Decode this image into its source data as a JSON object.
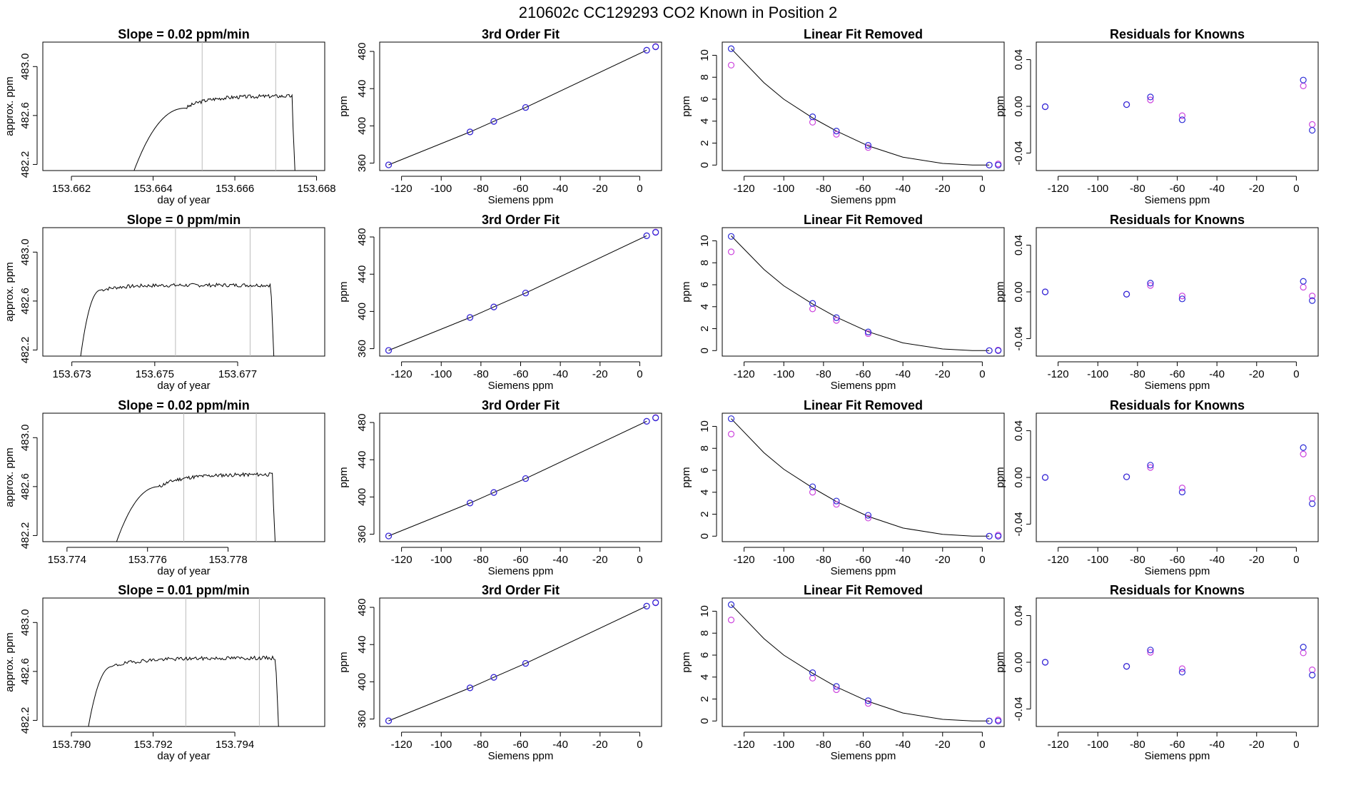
{
  "figure_title": "210602c     CC129293   CO2 Known in Position  2",
  "colors": {
    "blue": "#2b2bd6",
    "magenta": "#cc44dd",
    "marker": "#bbbbbb",
    "line": "#000000"
  },
  "chart_data": [
    {
      "row": 1,
      "panel": "timeseries",
      "type": "line",
      "title": "Slope =  0.02  ppm/min",
      "xlabel": "day of year",
      "ylabel": "approx. ppm",
      "xlim": [
        153.6613,
        153.6682
      ],
      "ylim": [
        482.15,
        483.2
      ],
      "xticks": [
        153.662,
        153.664,
        153.666,
        153.668
      ],
      "xtick_labels": [
        "153.662",
        "153.664",
        "153.666",
        "153.668"
      ],
      "yticks": [
        482.2,
        482.6,
        483.0
      ],
      "ytick_labels": [
        "482.2",
        "482.6",
        "483.0"
      ],
      "markers": [
        153.6652,
        153.667
      ],
      "start": 153.6635,
      "ramp_end": 153.6648,
      "end": 153.6674,
      "drop_end": 153.6675,
      "base": 482.12,
      "plateau": 482.7,
      "rise_slope": 0.5,
      "noise_seed": 3
    },
    {
      "row": 1,
      "panel": "fit",
      "type": "scatter+line",
      "title": "3rd Order Fit",
      "xlabel": "Siemens ppm",
      "ylabel": "ppm",
      "xlim": [
        -131,
        11
      ],
      "ylim": [
        352,
        490
      ],
      "xticks": [
        -120,
        -100,
        -80,
        -60,
        -40,
        -20,
        0
      ],
      "yticks": [
        360,
        400,
        440,
        480
      ],
      "x": [
        -126.5,
        -85.5,
        -73.5,
        -57.5,
        3.5,
        8.0
      ],
      "blue": [
        358.1,
        393.5,
        404.8,
        419.8,
        481.3,
        484.9
      ],
      "magenta": [
        358.1,
        393.5,
        404.8,
        419.8,
        481.3,
        485.3
      ]
    },
    {
      "row": 1,
      "panel": "linear_removed",
      "type": "scatter+line",
      "title": "Linear Fit Removed",
      "xlabel": "Siemens ppm",
      "ylabel": "ppm",
      "xlim": [
        -131,
        11
      ],
      "ylim": [
        -0.5,
        11.2
      ],
      "xticks": [
        -120,
        -100,
        -80,
        -60,
        -40,
        -20,
        0
      ],
      "yticks": [
        0,
        2,
        4,
        6,
        8,
        10
      ],
      "x": [
        -126.5,
        -85.5,
        -73.5,
        -57.5,
        3.5,
        8.0
      ],
      "blue": [
        10.6,
        4.4,
        3.1,
        1.8,
        0.0,
        0.0
      ],
      "magenta": [
        9.1,
        3.9,
        2.8,
        1.6,
        0.0,
        0.1
      ],
      "curve": [
        [
          -126.5,
          10.6
        ],
        [
          -110,
          7.5
        ],
        [
          -100,
          6.0
        ],
        [
          -85.5,
          4.3
        ],
        [
          -73.5,
          3.1
        ],
        [
          -57.5,
          1.75
        ],
        [
          -40,
          0.72
        ],
        [
          -20,
          0.15
        ],
        [
          -5,
          0.01
        ],
        [
          3.5,
          0.0
        ]
      ]
    },
    {
      "row": 1,
      "panel": "residuals",
      "type": "scatter",
      "title": "Residuals for Knowns",
      "xlabel": "Siemens ppm",
      "ylabel": "ppm",
      "xlim": [
        -131,
        11
      ],
      "ylim": [
        -0.055,
        0.055
      ],
      "xticks": [
        -120,
        -100,
        -80,
        -60,
        -40,
        -20,
        0
      ],
      "yticks": [
        -0.04,
        0.0,
        0.04
      ],
      "ytick_labels": [
        "-0.04",
        "0.00",
        "0.04"
      ],
      "x": [
        -126.5,
        -85.5,
        -73.5,
        -57.5,
        3.5,
        8.0
      ],
      "blue": [
        -0.0003,
        0.0015,
        0.008,
        -0.0115,
        0.0225,
        -0.0205
      ],
      "magenta": [
        -0.0003,
        0.0015,
        0.0055,
        -0.008,
        0.0175,
        -0.0155
      ]
    },
    {
      "row": 2,
      "panel": "timeseries",
      "type": "line",
      "title": "Slope =  0  ppm/min",
      "xlabel": "day of year",
      "ylabel": "approx. ppm",
      "xlim": [
        153.6723,
        153.6791
      ],
      "ylim": [
        482.15,
        483.2
      ],
      "xticks": [
        153.673,
        153.675,
        153.677
      ],
      "xtick_labels": [
        "153.673",
        "153.675",
        "153.677"
      ],
      "yticks": [
        482.2,
        482.6,
        483.0
      ],
      "ytick_labels": [
        "482.2",
        "482.6",
        "483.0"
      ],
      "markers": [
        153.6755,
        153.6773
      ],
      "start": 153.6732,
      "ramp_end": 153.6737,
      "end": 153.6778,
      "drop_end": 153.6779,
      "base": 482.12,
      "plateau": 482.73,
      "rise_slope": 0.0,
      "noise_seed": 7
    },
    {
      "row": 2,
      "panel": "fit",
      "type": "scatter+line",
      "title": "3rd Order Fit",
      "xlabel": "Siemens ppm",
      "ylabel": "ppm",
      "xlim": [
        -131,
        11
      ],
      "ylim": [
        352,
        490
      ],
      "xticks": [
        -120,
        -100,
        -80,
        -60,
        -40,
        -20,
        0
      ],
      "yticks": [
        360,
        400,
        440,
        480
      ],
      "x": [
        -126.5,
        -85.5,
        -73.5,
        -57.5,
        3.5,
        8.0
      ],
      "blue": [
        358.1,
        393.5,
        404.8,
        419.8,
        481.3,
        484.9
      ],
      "magenta": [
        358.1,
        393.5,
        404.8,
        419.8,
        481.3,
        485.3
      ]
    },
    {
      "row": 2,
      "panel": "linear_removed",
      "type": "scatter+line",
      "title": "Linear Fit Removed",
      "xlabel": "Siemens ppm",
      "ylabel": "ppm",
      "xlim": [
        -131,
        11
      ],
      "ylim": [
        -0.5,
        11.2
      ],
      "xticks": [
        -120,
        -100,
        -80,
        -60,
        -40,
        -20,
        0
      ],
      "yticks": [
        0,
        2,
        4,
        6,
        8,
        10
      ],
      "x": [
        -126.5,
        -85.5,
        -73.5,
        -57.5,
        3.5,
        8.0
      ],
      "blue": [
        10.4,
        4.3,
        3.0,
        1.7,
        0.0,
        0.0
      ],
      "magenta": [
        9.0,
        3.8,
        2.75,
        1.55,
        0.0,
        0.05
      ],
      "curve": [
        [
          -126.5,
          10.45
        ],
        [
          -110,
          7.4
        ],
        [
          -100,
          5.9
        ],
        [
          -85.5,
          4.25
        ],
        [
          -73.5,
          3.05
        ],
        [
          -57.5,
          1.72
        ],
        [
          -40,
          0.7
        ],
        [
          -20,
          0.15
        ],
        [
          -5,
          0.01
        ],
        [
          3.5,
          0.0
        ]
      ]
    },
    {
      "row": 2,
      "panel": "residuals",
      "type": "scatter",
      "title": "Residuals for Knowns",
      "xlabel": "Siemens ppm",
      "ylabel": "ppm",
      "xlim": [
        -131,
        11
      ],
      "ylim": [
        -0.055,
        0.055
      ],
      "xticks": [
        -120,
        -100,
        -80,
        -60,
        -40,
        -20,
        0
      ],
      "yticks": [
        -0.04,
        0.0,
        0.04
      ],
      "ytick_labels": [
        "-0.04",
        "0.00",
        "0.04"
      ],
      "x": [
        -126.5,
        -85.5,
        -73.5,
        -57.5,
        3.5,
        8.0
      ],
      "blue": [
        0.0,
        -0.002,
        0.0075,
        -0.006,
        0.009,
        -0.0075
      ],
      "magenta": [
        0.0,
        -0.002,
        0.0055,
        -0.0035,
        0.004,
        -0.0035
      ]
    },
    {
      "row": 3,
      "panel": "timeseries",
      "type": "line",
      "title": "Slope =  0.02  ppm/min",
      "xlabel": "day of year",
      "ylabel": "approx. ppm",
      "xlim": [
        153.7734,
        153.7804
      ],
      "ylim": [
        482.15,
        483.2
      ],
      "xticks": [
        153.774,
        153.776,
        153.778
      ],
      "xtick_labels": [
        "153.774",
        "153.776",
        "153.778"
      ],
      "yticks": [
        482.2,
        482.6,
        483.0
      ],
      "ytick_labels": [
        "482.2",
        "482.6",
        "483.0"
      ],
      "markers": [
        153.7769,
        153.7787
      ],
      "start": 153.7752,
      "ramp_end": 153.7763,
      "end": 153.7791,
      "drop_end": 153.7792,
      "base": 482.12,
      "plateau": 482.64,
      "rise_slope": 0.5,
      "noise_seed": 11
    },
    {
      "row": 3,
      "panel": "fit",
      "type": "scatter+line",
      "title": "3rd Order Fit",
      "xlabel": "Siemens ppm",
      "ylabel": "ppm",
      "xlim": [
        -131,
        11
      ],
      "ylim": [
        352,
        490
      ],
      "xticks": [
        -120,
        -100,
        -80,
        -60,
        -40,
        -20,
        0
      ],
      "yticks": [
        360,
        400,
        440,
        480
      ],
      "x": [
        -126.5,
        -85.5,
        -73.5,
        -57.5,
        3.5,
        8.0
      ],
      "blue": [
        358.1,
        393.5,
        404.8,
        419.8,
        481.3,
        484.9
      ],
      "magenta": [
        358.1,
        393.5,
        404.8,
        419.8,
        481.3,
        485.3
      ]
    },
    {
      "row": 3,
      "panel": "linear_removed",
      "type": "scatter+line",
      "title": "Linear Fit Removed",
      "xlabel": "Siemens ppm",
      "ylabel": "ppm",
      "xlim": [
        -131,
        11
      ],
      "ylim": [
        -0.5,
        11.2
      ],
      "xticks": [
        -120,
        -100,
        -80,
        -60,
        -40,
        -20,
        0
      ],
      "yticks": [
        0,
        2,
        4,
        6,
        8,
        10
      ],
      "x": [
        -126.5,
        -85.5,
        -73.5,
        -57.5,
        3.5,
        8.0
      ],
      "blue": [
        10.7,
        4.5,
        3.2,
        1.9,
        0.0,
        0.0
      ],
      "magenta": [
        9.3,
        4.0,
        2.9,
        1.65,
        0.0,
        0.1
      ],
      "curve": [
        [
          -126.5,
          10.7
        ],
        [
          -110,
          7.6
        ],
        [
          -100,
          6.1
        ],
        [
          -85.5,
          4.4
        ],
        [
          -73.5,
          3.15
        ],
        [
          -57.5,
          1.8
        ],
        [
          -40,
          0.74
        ],
        [
          -20,
          0.16
        ],
        [
          -5,
          0.01
        ],
        [
          3.5,
          0.0
        ]
      ]
    },
    {
      "row": 3,
      "panel": "residuals",
      "type": "scatter",
      "title": "Residuals for Knowns",
      "xlabel": "Siemens ppm",
      "ylabel": "ppm",
      "xlim": [
        -131,
        11
      ],
      "ylim": [
        -0.055,
        0.055
      ],
      "xticks": [
        -120,
        -100,
        -80,
        -60,
        -40,
        -20,
        0
      ],
      "yticks": [
        -0.04,
        0.0,
        0.04
      ],
      "ytick_labels": [
        "-0.04",
        "0.00",
        "0.04"
      ],
      "x": [
        -126.5,
        -85.5,
        -73.5,
        -57.5,
        3.5,
        8.0
      ],
      "blue": [
        0.0,
        0.0005,
        0.0105,
        -0.0125,
        0.0255,
        -0.0225
      ],
      "magenta": [
        0.0,
        0.0005,
        0.0085,
        -0.009,
        0.02,
        -0.018
      ]
    },
    {
      "row": 4,
      "panel": "timeseries",
      "type": "line",
      "title": "Slope =  0.01  ppm/min",
      "xlabel": "day of year",
      "ylabel": "approx. ppm",
      "xlim": [
        153.7893,
        153.7962
      ],
      "ylim": [
        482.15,
        483.2
      ],
      "xticks": [
        153.79,
        153.792,
        153.794
      ],
      "xtick_labels": [
        "153.790",
        "153.792",
        "153.794"
      ],
      "yticks": [
        482.2,
        482.6,
        483.0
      ],
      "ytick_labels": [
        "482.2",
        "482.6",
        "483.0"
      ],
      "markers": [
        153.7928,
        153.7946
      ],
      "start": 153.7904,
      "ramp_end": 153.791,
      "end": 153.795,
      "drop_end": 153.7951,
      "base": 482.12,
      "plateau": 482.68,
      "rise_slope": 0.25,
      "noise_seed": 19
    },
    {
      "row": 4,
      "panel": "fit",
      "type": "scatter+line",
      "title": "3rd Order Fit",
      "xlabel": "Siemens ppm",
      "ylabel": "ppm",
      "xlim": [
        -131,
        11
      ],
      "ylim": [
        352,
        490
      ],
      "xticks": [
        -120,
        -100,
        -80,
        -60,
        -40,
        -20,
        0
      ],
      "yticks": [
        360,
        400,
        440,
        480
      ],
      "x": [
        -126.5,
        -85.5,
        -73.5,
        -57.5,
        3.5,
        8.0
      ],
      "blue": [
        358.1,
        393.5,
        404.8,
        419.8,
        481.3,
        484.9
      ],
      "magenta": [
        358.1,
        393.5,
        404.8,
        419.8,
        481.3,
        485.3
      ]
    },
    {
      "row": 4,
      "panel": "linear_removed",
      "type": "scatter+line",
      "title": "Linear Fit Removed",
      "xlabel": "Siemens ppm",
      "ylabel": "ppm",
      "xlim": [
        -131,
        11
      ],
      "ylim": [
        -0.5,
        11.2
      ],
      "xticks": [
        -120,
        -100,
        -80,
        -60,
        -40,
        -20,
        0
      ],
      "yticks": [
        0,
        2,
        4,
        6,
        8,
        10
      ],
      "x": [
        -126.5,
        -85.5,
        -73.5,
        -57.5,
        3.5,
        8.0
      ],
      "blue": [
        10.6,
        4.4,
        3.15,
        1.85,
        0.0,
        0.0
      ],
      "magenta": [
        9.2,
        3.9,
        2.85,
        1.6,
        0.0,
        0.1
      ],
      "curve": [
        [
          -126.5,
          10.6
        ],
        [
          -110,
          7.5
        ],
        [
          -100,
          6.0
        ],
        [
          -85.5,
          4.35
        ],
        [
          -73.5,
          3.1
        ],
        [
          -57.5,
          1.78
        ],
        [
          -40,
          0.73
        ],
        [
          -20,
          0.15
        ],
        [
          -5,
          0.01
        ],
        [
          3.5,
          0.0
        ]
      ]
    },
    {
      "row": 4,
      "panel": "residuals",
      "type": "scatter",
      "title": "Residuals for Knowns",
      "xlabel": "Siemens ppm",
      "ylabel": "ppm",
      "xlim": [
        -131,
        11
      ],
      "ylim": [
        -0.055,
        0.055
      ],
      "xticks": [
        -120,
        -100,
        -80,
        -60,
        -40,
        -20,
        0
      ],
      "yticks": [
        -0.04,
        0.0,
        0.04
      ],
      "ytick_labels": [
        "-0.04",
        "0.00",
        "0.04"
      ],
      "x": [
        -126.5,
        -85.5,
        -73.5,
        -57.5,
        3.5,
        8.0
      ],
      "blue": [
        0.0,
        -0.0035,
        0.0105,
        -0.0085,
        0.013,
        -0.011
      ],
      "magenta": [
        0.0,
        -0.0035,
        0.0085,
        -0.0055,
        0.008,
        -0.0065
      ]
    }
  ]
}
